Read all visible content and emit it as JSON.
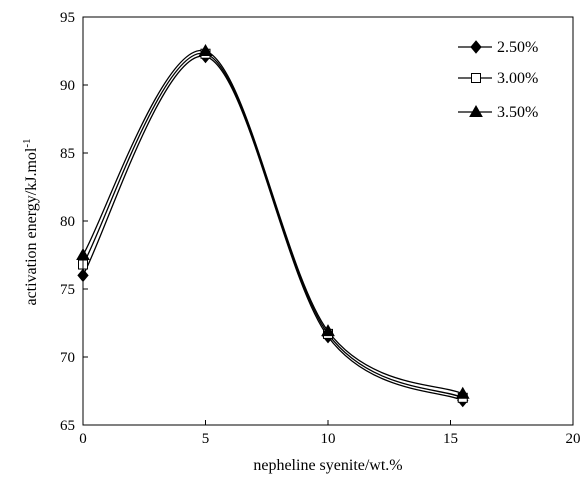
{
  "chart_data": {
    "type": "line",
    "title": "",
    "xlabel": "nepheline syenite/wt.%",
    "ylabel_main": "activation energy/kJ.mol",
    "ylabel_sup": "-1",
    "xlim": [
      0,
      20
    ],
    "ylim": [
      65,
      95
    ],
    "x_ticks": [
      "0",
      "5",
      "10",
      "15",
      "20"
    ],
    "y_ticks": [
      "65",
      "70",
      "75",
      "80",
      "85",
      "90",
      "95"
    ],
    "grid": false,
    "legend_position": "top-right",
    "series": [
      {
        "name": "2.50%",
        "marker": "diamond-filled",
        "x": [
          0,
          5,
          10,
          15.5
        ],
        "y": [
          76.0,
          92.1,
          71.5,
          66.8
        ]
      },
      {
        "name": "3.00%",
        "marker": "square-open",
        "x": [
          0,
          5,
          10,
          15.5
        ],
        "y": [
          76.8,
          92.3,
          71.7,
          67.0
        ]
      },
      {
        "name": "3.50%",
        "marker": "triangle-filled",
        "x": [
          0,
          5,
          10,
          15.5
        ],
        "y": [
          77.5,
          92.5,
          71.9,
          67.3
        ]
      }
    ]
  }
}
